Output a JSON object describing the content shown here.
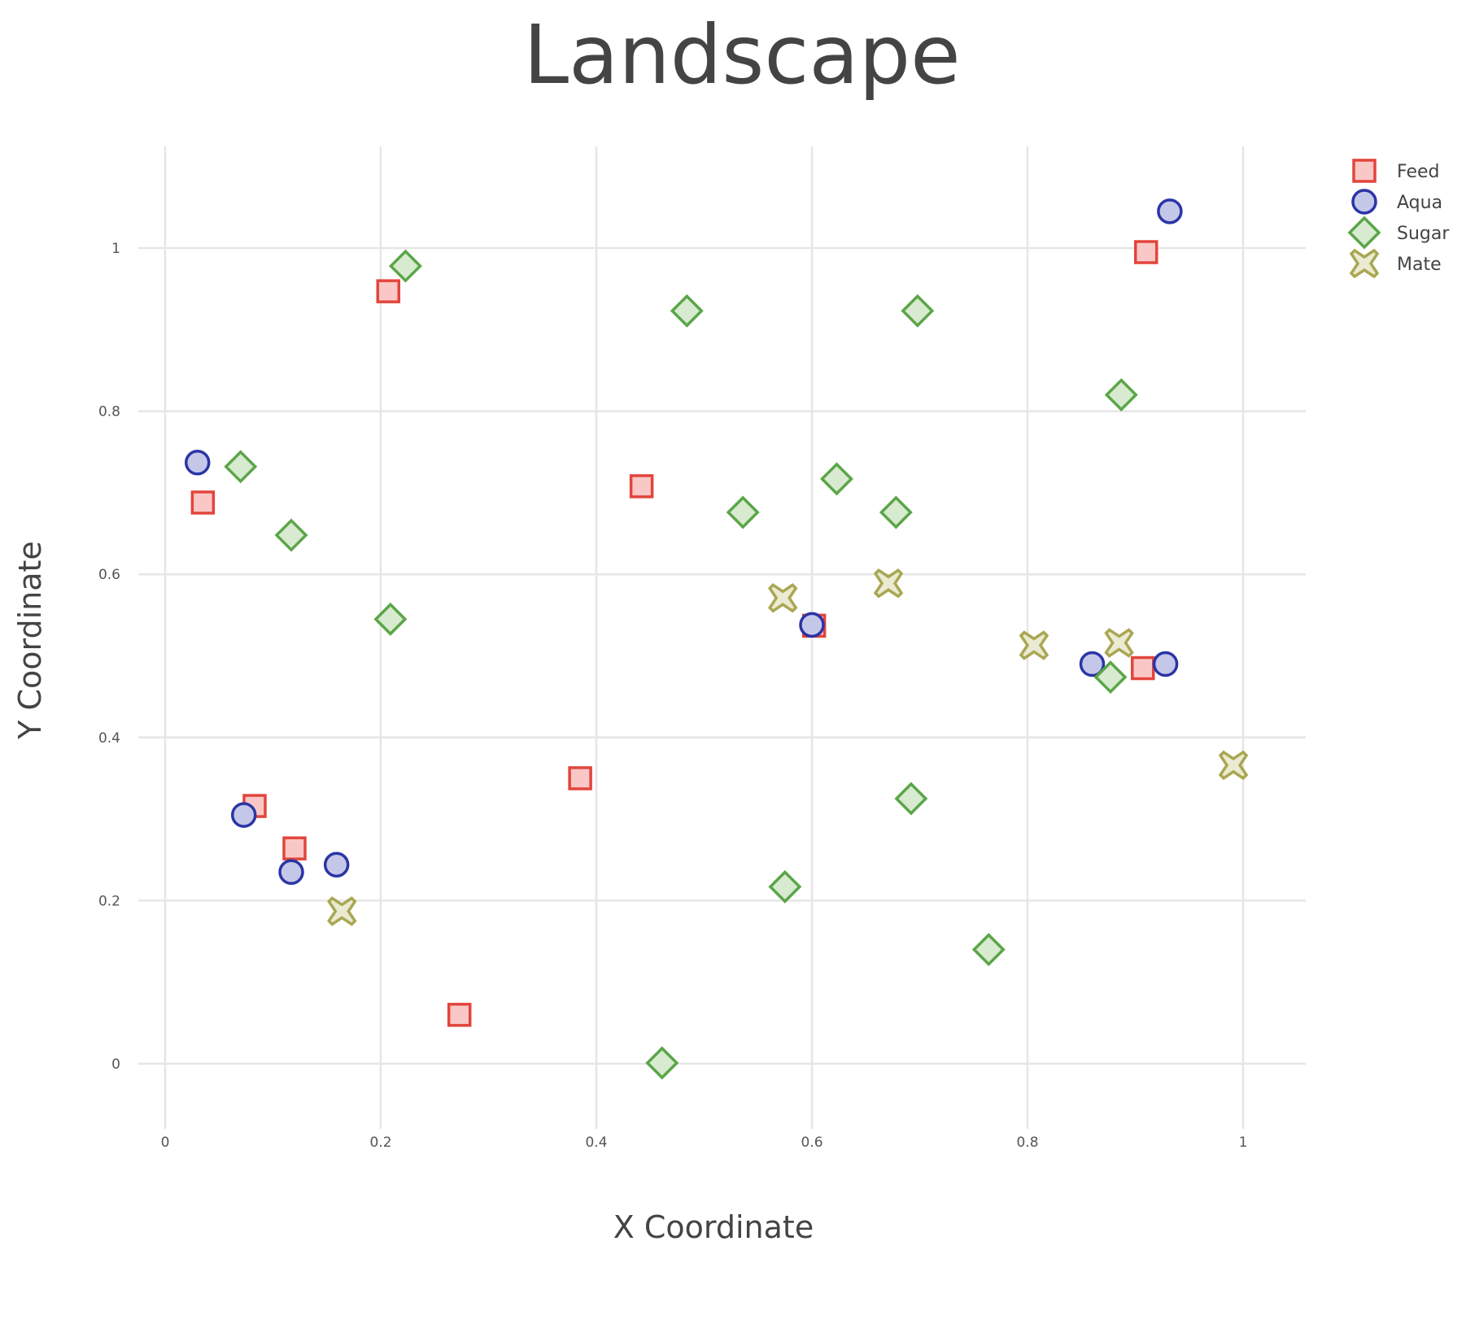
{
  "chart_data": {
    "type": "scatter",
    "title": "Landscape",
    "xlabel": "X Coordinate",
    "ylabel": "Y Coordinate",
    "xlim": [
      -0.055,
      1.06
    ],
    "ylim": [
      -0.08,
      1.125
    ],
    "x_ticks": [
      {
        "value": 0,
        "label": "0"
      },
      {
        "value": 0.2,
        "label": "0.2"
      },
      {
        "value": 0.4,
        "label": "0.4"
      },
      {
        "value": 0.6,
        "label": "0.6"
      },
      {
        "value": 0.8,
        "label": "0.8"
      },
      {
        "value": 1,
        "label": "1"
      }
    ],
    "y_ticks": [
      {
        "value": 0,
        "label": "0"
      },
      {
        "value": 0.2,
        "label": "0.2"
      },
      {
        "value": 0.4,
        "label": "0.4"
      },
      {
        "value": 0.6,
        "label": "0.6"
      },
      {
        "value": 0.8,
        "label": "0.8"
      },
      {
        "value": 1,
        "label": "1"
      }
    ],
    "grid": true,
    "legend_position": "top-right",
    "series": [
      {
        "name": "Feed",
        "marker": "square",
        "stroke": "#e2453c",
        "fill": "#f9c8c6",
        "points": [
          {
            "x": 0.207,
            "y": 0.947
          },
          {
            "x": 0.91,
            "y": 0.995
          },
          {
            "x": 0.035,
            "y": 0.688
          },
          {
            "x": 0.442,
            "y": 0.708
          },
          {
            "x": 0.602,
            "y": 0.537
          },
          {
            "x": 0.907,
            "y": 0.485
          },
          {
            "x": 0.083,
            "y": 0.316
          },
          {
            "x": 0.12,
            "y": 0.264
          },
          {
            "x": 0.385,
            "y": 0.35
          },
          {
            "x": 0.273,
            "y": 0.06
          }
        ]
      },
      {
        "name": "Aqua",
        "marker": "circle",
        "stroke": "#2a35a6",
        "fill": "#c5c7e8",
        "points": [
          {
            "x": 0.932,
            "y": 1.045
          },
          {
            "x": 0.03,
            "y": 0.737
          },
          {
            "x": 0.6,
            "y": 0.538
          },
          {
            "x": 0.86,
            "y": 0.49
          },
          {
            "x": 0.928,
            "y": 0.49
          },
          {
            "x": 0.073,
            "y": 0.305
          },
          {
            "x": 0.117,
            "y": 0.235
          },
          {
            "x": 0.159,
            "y": 0.244
          }
        ]
      },
      {
        "name": "Sugar",
        "marker": "diamond",
        "stroke": "#5aa648",
        "fill": "#d8ead0",
        "points": [
          {
            "x": 0.223,
            "y": 0.978
          },
          {
            "x": 0.484,
            "y": 0.923
          },
          {
            "x": 0.698,
            "y": 0.923
          },
          {
            "x": 0.887,
            "y": 0.82
          },
          {
            "x": 0.07,
            "y": 0.732
          },
          {
            "x": 0.117,
            "y": 0.648
          },
          {
            "x": 0.536,
            "y": 0.676
          },
          {
            "x": 0.623,
            "y": 0.717
          },
          {
            "x": 0.678,
            "y": 0.676
          },
          {
            "x": 0.209,
            "y": 0.545
          },
          {
            "x": 0.877,
            "y": 0.474
          },
          {
            "x": 0.692,
            "y": 0.325
          },
          {
            "x": 0.575,
            "y": 0.217
          },
          {
            "x": 0.764,
            "y": 0.14
          },
          {
            "x": 0.461,
            "y": 0.001
          }
        ]
      },
      {
        "name": "Mate",
        "marker": "x",
        "stroke": "#a9a752",
        "fill": "#ebead2",
        "points": [
          {
            "x": 0.573,
            "y": 0.571
          },
          {
            "x": 0.671,
            "y": 0.589
          },
          {
            "x": 0.806,
            "y": 0.513
          },
          {
            "x": 0.885,
            "y": 0.516
          },
          {
            "x": 0.991,
            "y": 0.366
          },
          {
            "x": 0.164,
            "y": 0.187
          }
        ]
      }
    ]
  }
}
